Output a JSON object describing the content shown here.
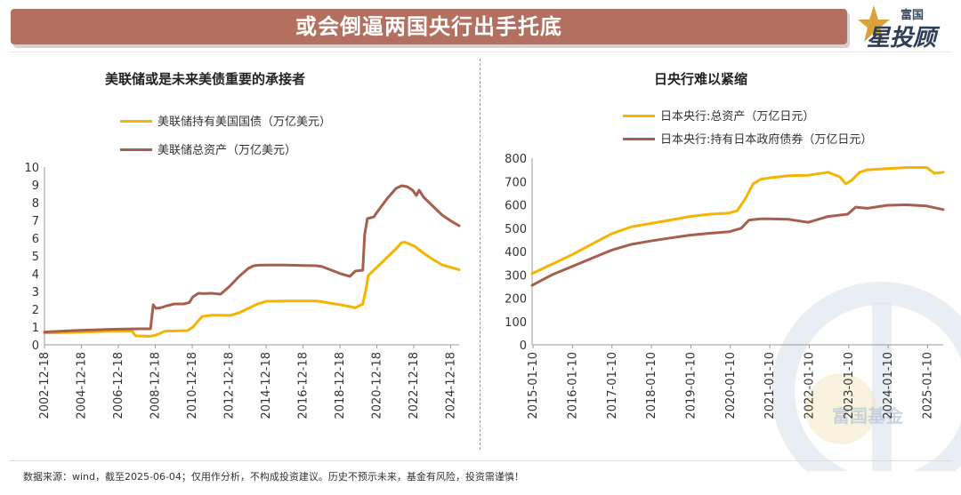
{
  "header": {
    "title": "或会倒逼两国央行出手托底",
    "logo_small": "富国",
    "logo_big": "星投顾",
    "watermark": "富国基金"
  },
  "colors": {
    "banner": "#b36f5f",
    "series_yellow": "#f5b400",
    "series_brown": "#a65f4d"
  },
  "footer": {
    "source": "数据来源：wind，截至2025-06-04；仅用作分析，不构成投资建议。历史不预示未来，基金有风险，投资需谨慎！"
  },
  "chart_data": [
    {
      "type": "line",
      "title": "美联储或是未来美债重要的承接者",
      "xlabel": "",
      "ylabel": "",
      "ylim": [
        0,
        10
      ],
      "yticks": [
        "0",
        "1",
        "2",
        "3",
        "4",
        "5",
        "6",
        "7",
        "8",
        "9",
        "10"
      ],
      "xlim": [
        2002.96,
        2025.42
      ],
      "xticks": [
        "2002-12-18",
        "2004-12-18",
        "2006-12-18",
        "2008-12-18",
        "2010-12-18",
        "2012-12-18",
        "2014-12-18",
        "2016-12-18",
        "2018-12-18",
        "2020-12-18",
        "2022-12-18",
        "2024-12-18"
      ],
      "grid": false,
      "legend": "top-left",
      "series": [
        {
          "name": "美联储持有美国国债（万亿美元）",
          "color": "#f5b400",
          "x": [
            2002.96,
            2004.5,
            2006.5,
            2007.7,
            2007.9,
            2008.7,
            2009.0,
            2009.5,
            2010.0,
            2010.7,
            2011.0,
            2011.5,
            2012.0,
            2012.5,
            2013.0,
            2013.5,
            2014.0,
            2014.5,
            2015.0,
            2016.0,
            2017.0,
            2017.7,
            2018.0,
            2019.0,
            2019.5,
            2019.8,
            2020.2,
            2020.35,
            2020.5,
            2021.0,
            2021.5,
            2022.0,
            2022.3,
            2022.5,
            2023.0,
            2023.5,
            2024.0,
            2024.5,
            2025.0,
            2025.42
          ],
          "y": [
            0.66,
            0.7,
            0.76,
            0.77,
            0.5,
            0.48,
            0.55,
            0.77,
            0.78,
            0.8,
            1.0,
            1.6,
            1.66,
            1.66,
            1.65,
            1.8,
            2.05,
            2.3,
            2.45,
            2.46,
            2.46,
            2.46,
            2.42,
            2.25,
            2.15,
            2.08,
            2.3,
            3.0,
            3.9,
            4.4,
            4.9,
            5.4,
            5.75,
            5.77,
            5.55,
            5.15,
            4.8,
            4.5,
            4.35,
            4.22
          ]
        },
        {
          "name": "美联储总资产（万亿美元）",
          "color": "#a65f4d",
          "x": [
            2002.96,
            2004.5,
            2006.5,
            2008.0,
            2008.7,
            2008.85,
            2009.0,
            2009.3,
            2009.6,
            2010.0,
            2010.5,
            2010.8,
            2011.0,
            2011.3,
            2011.6,
            2012.0,
            2012.5,
            2013.0,
            2013.5,
            2014.0,
            2014.3,
            2014.6,
            2015.0,
            2016.0,
            2017.0,
            2017.7,
            2018.0,
            2019.0,
            2019.5,
            2019.8,
            2020.2,
            2020.3,
            2020.45,
            2020.8,
            2021.0,
            2021.5,
            2022.0,
            2022.3,
            2022.6,
            2022.9,
            2023.1,
            2023.25,
            2023.5,
            2024.0,
            2024.5,
            2025.0,
            2025.42
          ],
          "y": [
            0.72,
            0.8,
            0.87,
            0.9,
            0.9,
            2.25,
            2.05,
            2.1,
            2.2,
            2.3,
            2.3,
            2.38,
            2.7,
            2.9,
            2.88,
            2.9,
            2.85,
            3.3,
            3.85,
            4.3,
            4.45,
            4.48,
            4.49,
            4.49,
            4.46,
            4.45,
            4.4,
            4.0,
            3.85,
            4.15,
            4.2,
            6.2,
            7.1,
            7.2,
            7.5,
            8.2,
            8.8,
            8.95,
            8.9,
            8.7,
            8.4,
            8.7,
            8.3,
            7.8,
            7.3,
            6.95,
            6.7
          ]
        }
      ]
    },
    {
      "type": "line",
      "title": "日央行难以紧缩",
      "xlabel": "",
      "ylabel": "",
      "ylim": [
        0,
        800
      ],
      "yticks": [
        "0",
        "100",
        "200",
        "300",
        "400",
        "500",
        "600",
        "700",
        "800"
      ],
      "xlim": [
        2015.0,
        2025.42
      ],
      "xticks": [
        "2015-01-10",
        "2016-01-10",
        "2017-01-10",
        "2018-01-10",
        "2019-01-10",
        "2020-01-10",
        "2021-01-10",
        "2022-01-10",
        "2023-01-10",
        "2024-01-10",
        "2025-01-10"
      ],
      "grid": false,
      "legend": "top-left",
      "series": [
        {
          "name": "日本央行:总资产（万亿日元）",
          "color": "#f5b400",
          "x": [
            2015.0,
            2015.5,
            2016.0,
            2016.5,
            2017.0,
            2017.5,
            2018.0,
            2018.5,
            2019.0,
            2019.5,
            2020.0,
            2020.2,
            2020.4,
            2020.6,
            2020.8,
            2021.0,
            2021.5,
            2022.0,
            2022.5,
            2022.8,
            2022.95,
            2023.1,
            2023.3,
            2023.5,
            2024.0,
            2024.5,
            2025.0,
            2025.2,
            2025.42
          ],
          "y": [
            305,
            345,
            385,
            430,
            475,
            505,
            520,
            535,
            550,
            560,
            565,
            575,
            625,
            690,
            710,
            715,
            725,
            727,
            740,
            720,
            690,
            705,
            740,
            750,
            755,
            760,
            760,
            735,
            740
          ]
        },
        {
          "name": "日本央行:持有日本政府债券（万亿日元）",
          "color": "#a65f4d",
          "x": [
            2015.0,
            2015.5,
            2016.0,
            2016.5,
            2017.0,
            2017.5,
            2018.0,
            2018.5,
            2019.0,
            2019.5,
            2020.0,
            2020.3,
            2020.5,
            2020.8,
            2021.0,
            2021.5,
            2022.0,
            2022.5,
            2023.0,
            2023.2,
            2023.5,
            2024.0,
            2024.5,
            2025.0,
            2025.42
          ],
          "y": [
            255,
            300,
            335,
            370,
            405,
            430,
            445,
            458,
            470,
            478,
            485,
            500,
            535,
            540,
            540,
            538,
            525,
            550,
            560,
            590,
            585,
            598,
            600,
            595,
            580
          ]
        }
      ]
    }
  ]
}
